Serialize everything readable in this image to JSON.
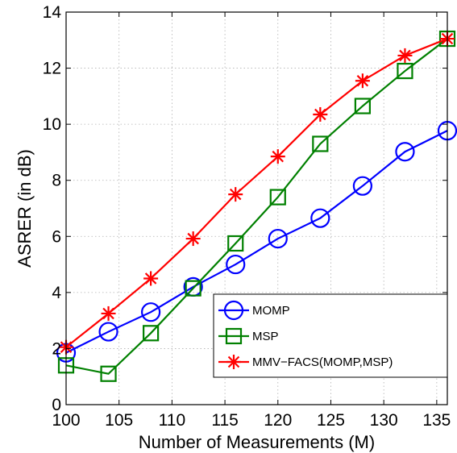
{
  "chart_data": {
    "type": "line",
    "title": "",
    "xlabel": "Number of Measurements (M)",
    "ylabel": "ASRER (in dB)",
    "xlim": [
      100,
      136
    ],
    "ylim": [
      0,
      14
    ],
    "xticks": [
      100,
      105,
      110,
      115,
      120,
      125,
      130,
      135
    ],
    "yticks": [
      0,
      2,
      4,
      6,
      8,
      10,
      12,
      14
    ],
    "grid": true,
    "legend_position": "bottom-right",
    "x": [
      100,
      104,
      108,
      112,
      116,
      120,
      124,
      128,
      132,
      136
    ],
    "series": [
      {
        "name": "MOMP",
        "marker": "circle",
        "color": "#0000ff",
        "values": [
          1.85,
          2.6,
          3.3,
          4.2,
          5.0,
          5.92,
          6.65,
          7.8,
          9.02,
          9.77
        ]
      },
      {
        "name": "MSP",
        "marker": "square",
        "color": "#008000",
        "values": [
          1.4,
          1.1,
          2.55,
          4.15,
          5.75,
          7.4,
          9.3,
          10.65,
          11.9,
          13.05
        ]
      },
      {
        "name": "MMV−FACS(MOMP,MSP)",
        "marker": "asterisk",
        "color": "#ff0000",
        "values": [
          2.05,
          3.25,
          4.5,
          5.92,
          7.5,
          8.85,
          10.35,
          11.55,
          12.45,
          13.05
        ]
      }
    ]
  }
}
